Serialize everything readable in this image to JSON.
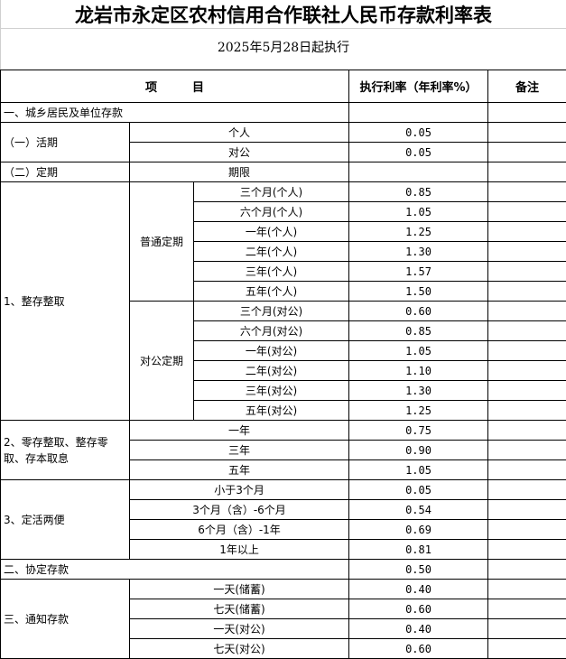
{
  "title": "龙岩市永定区农村信用合作联社人民币存款利率表",
  "effective_date": "2025年5月28日起执行",
  "header": {
    "item": "项　　　目",
    "rate": "执行利率（年利率%）",
    "note": "备注"
  },
  "sec1": {
    "label": "一、城乡居民及单位存款"
  },
  "demand": {
    "label": "（一）活期",
    "rows": [
      {
        "item": "个人",
        "rate": "0.05"
      },
      {
        "item": "对公",
        "rate": "0.05"
      }
    ]
  },
  "fixed": {
    "label": "（二）定期",
    "term_label": "期限"
  },
  "lump": {
    "label": "1、整存整取",
    "personal": {
      "label": "普通定期",
      "rows": [
        {
          "item": "三个月(个人)",
          "rate": "0.85"
        },
        {
          "item": "六个月(个人)",
          "rate": "1.05"
        },
        {
          "item": "一年(个人)",
          "rate": "1.25"
        },
        {
          "item": "二年(个人)",
          "rate": "1.30"
        },
        {
          "item": "三年(个人)",
          "rate": "1.57"
        },
        {
          "item": "五年(个人)",
          "rate": "1.50"
        }
      ]
    },
    "corporate": {
      "label": "对公定期",
      "rows": [
        {
          "item": "三个月(对公)",
          "rate": "0.60"
        },
        {
          "item": "六个月(对公)",
          "rate": "0.85"
        },
        {
          "item": "一年(对公)",
          "rate": "1.05"
        },
        {
          "item": "二年(对公)",
          "rate": "1.10"
        },
        {
          "item": "三年(对公)",
          "rate": "1.30"
        },
        {
          "item": "五年(对公)",
          "rate": "1.25"
        }
      ]
    }
  },
  "installment": {
    "label": "2、零存整取、整存零取、存本取息",
    "rows": [
      {
        "item": "一年",
        "rate": "0.75"
      },
      {
        "item": "三年",
        "rate": "0.90"
      },
      {
        "item": "五年",
        "rate": "1.05"
      }
    ]
  },
  "flexible": {
    "label": "3、定活两便",
    "rows": [
      {
        "item": "小于3个月",
        "rate": "0.05"
      },
      {
        "item": "3个月（含）-6个月",
        "rate": "0.54"
      },
      {
        "item": "6个月（含）-1年",
        "rate": "0.69"
      },
      {
        "item": "1年以上",
        "rate": "0.81"
      }
    ]
  },
  "agreement": {
    "label": "二、协定存款",
    "rate": "0.50"
  },
  "notice": {
    "label": "三、通知存款",
    "rows": [
      {
        "item": "一天(储蓄)",
        "rate": "0.40"
      },
      {
        "item": "七天(储蓄)",
        "rate": "0.60"
      },
      {
        "item": "一天(对公)",
        "rate": "0.40"
      },
      {
        "item": "七天(对公)",
        "rate": "0.60"
      }
    ]
  }
}
